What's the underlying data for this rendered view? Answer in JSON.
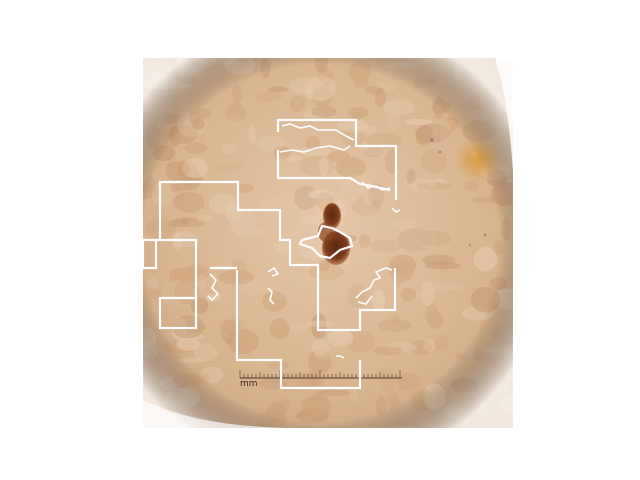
{
  "figure": {
    "type": "dermoscopy-image-with-segmentation-overlay",
    "background_color": "#ffffff",
    "skin_base_color": "#dbb896",
    "lesion_color": "#7a3a1c",
    "overlay_color": "#ffffff",
    "ruler": {
      "unit_label": "mm"
    }
  }
}
